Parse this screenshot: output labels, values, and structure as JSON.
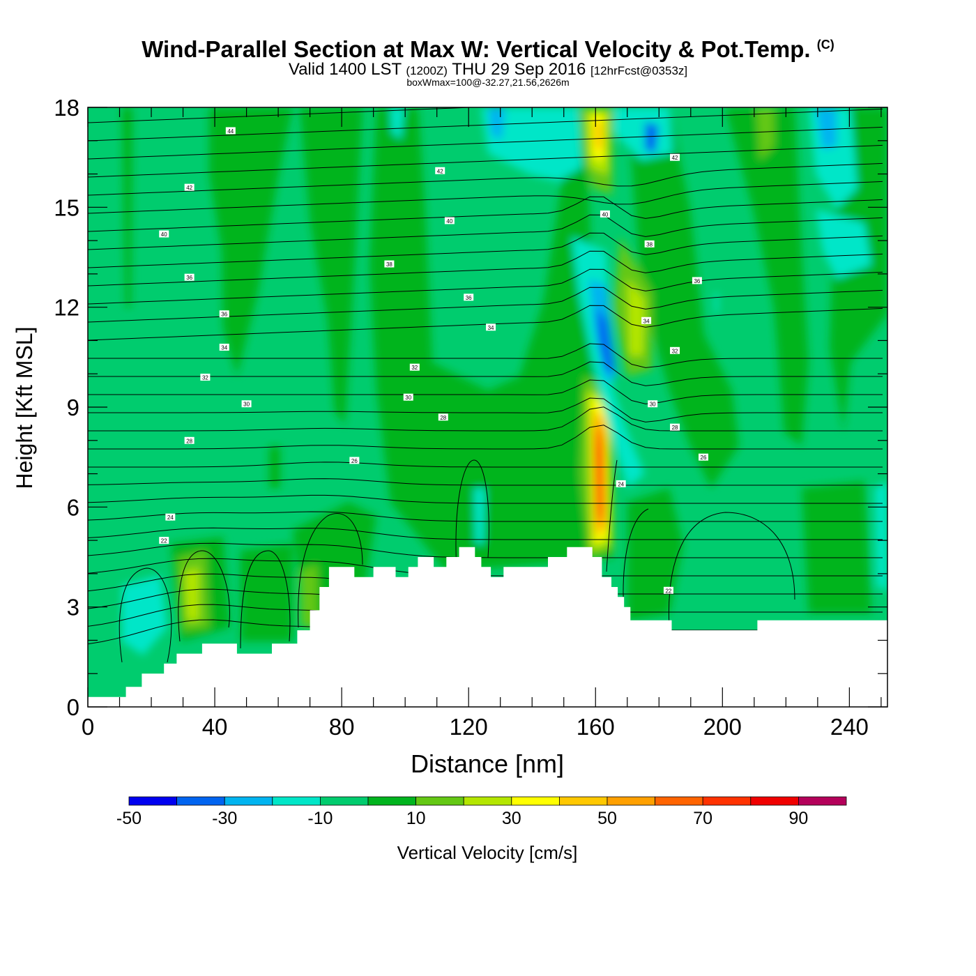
{
  "title": {
    "main": "Wind-Parallel Section at Max W: Vertical Velocity & Pot.Temp.",
    "copyright": "(C)",
    "valid_prefix": "Valid 1400 LST",
    "valid_z": "(1200Z)",
    "valid_date": "THU 29 Sep 2016",
    "forecast": "[12hrFcst@0353z]",
    "box_info": "boxWmax=100@-32.27,21.56,2626m"
  },
  "chart_data": {
    "type": "heatmap",
    "xlabel": "Distance [nm]",
    "ylabel": "Height [Kft MSL]",
    "xlim": [
      0,
      252
    ],
    "ylim": [
      0,
      18
    ],
    "x_ticks": [
      0,
      40,
      80,
      120,
      160,
      200,
      240
    ],
    "y_ticks": [
      0,
      3,
      6,
      9,
      12,
      15,
      18
    ],
    "colorbar": {
      "label": "Vertical Velocity [cm/s]",
      "tick_labels": [
        -50,
        -30,
        -10,
        10,
        30,
        50,
        70,
        90
      ],
      "bins": [
        -50,
        -40,
        -30,
        -20,
        -10,
        0,
        10,
        20,
        30,
        40,
        50,
        60,
        70,
        80,
        90,
        100
      ],
      "colors": [
        "#0000f0",
        "#0064f0",
        "#00b4f0",
        "#00e6c8",
        "#00cc6e",
        "#00b41e",
        "#64c814",
        "#b4e600",
        "#ffff00",
        "#ffc800",
        "#ffa000",
        "#ff6400",
        "#ff3200",
        "#f00000",
        "#b4005a"
      ]
    },
    "field_background": "#00cc6e",
    "terrain": [
      [
        0,
        0.3
      ],
      [
        12,
        0.3
      ],
      [
        12,
        0.6
      ],
      [
        17,
        0.6
      ],
      [
        17,
        1.0
      ],
      [
        24,
        1.0
      ],
      [
        24,
        1.3
      ],
      [
        28,
        1.3
      ],
      [
        28,
        1.6
      ],
      [
        36,
        1.6
      ],
      [
        36,
        1.9
      ],
      [
        47,
        1.9
      ],
      [
        47,
        1.6
      ],
      [
        58,
        1.6
      ],
      [
        58,
        1.9
      ],
      [
        66,
        1.9
      ],
      [
        66,
        2.3
      ],
      [
        70,
        2.3
      ],
      [
        70,
        2.9
      ],
      [
        73,
        2.9
      ],
      [
        73,
        3.6
      ],
      [
        76,
        3.6
      ],
      [
        76,
        4.2
      ],
      [
        84,
        4.2
      ],
      [
        84,
        3.9
      ],
      [
        90,
        3.9
      ],
      [
        90,
        4.2
      ],
      [
        97,
        4.2
      ],
      [
        97,
        3.9
      ],
      [
        101,
        3.9
      ],
      [
        101,
        4.2
      ],
      [
        104,
        4.2
      ],
      [
        104,
        4.5
      ],
      [
        109,
        4.5
      ],
      [
        109,
        4.2
      ],
      [
        113,
        4.2
      ],
      [
        113,
        4.5
      ],
      [
        117,
        4.5
      ],
      [
        117,
        4.8
      ],
      [
        122,
        4.8
      ],
      [
        122,
        4.5
      ],
      [
        124,
        4.5
      ],
      [
        124,
        4.2
      ],
      [
        127,
        4.2
      ],
      [
        127,
        3.9
      ],
      [
        131,
        3.9
      ],
      [
        131,
        4.2
      ],
      [
        140,
        4.2
      ],
      [
        140,
        4.2
      ],
      [
        145,
        4.2
      ],
      [
        145,
        4.5
      ],
      [
        151,
        4.5
      ],
      [
        151,
        4.8
      ],
      [
        159,
        4.8
      ],
      [
        159,
        4.5
      ],
      [
        162,
        4.5
      ],
      [
        162,
        3.9
      ],
      [
        165,
        3.9
      ],
      [
        165,
        3.6
      ],
      [
        167,
        3.6
      ],
      [
        167,
        3.3
      ],
      [
        169,
        3.3
      ],
      [
        169,
        3.0
      ],
      [
        171,
        3.0
      ],
      [
        171,
        2.6
      ],
      [
        184,
        2.6
      ],
      [
        184,
        2.3
      ],
      [
        211,
        2.3
      ],
      [
        211,
        2.6
      ],
      [
        252,
        2.6
      ]
    ],
    "contour_labels": [
      {
        "x": 45,
        "y": 17.3,
        "text": "44"
      },
      {
        "x": 111,
        "y": 16.1,
        "text": "42"
      },
      {
        "x": 185,
        "y": 16.5,
        "text": "42"
      },
      {
        "x": 32,
        "y": 15.6,
        "text": "42"
      },
      {
        "x": 114,
        "y": 14.6,
        "text": "40"
      },
      {
        "x": 163,
        "y": 14.8,
        "text": "40"
      },
      {
        "x": 24,
        "y": 14.2,
        "text": "40"
      },
      {
        "x": 177,
        "y": 13.9,
        "text": "38"
      },
      {
        "x": 95,
        "y": 13.3,
        "text": "38"
      },
      {
        "x": 32,
        "y": 12.9,
        "text": "36"
      },
      {
        "x": 192,
        "y": 12.8,
        "text": "36"
      },
      {
        "x": 120,
        "y": 12.3,
        "text": "36"
      },
      {
        "x": 43,
        "y": 11.8,
        "text": "36"
      },
      {
        "x": 176,
        "y": 11.6,
        "text": "34"
      },
      {
        "x": 127,
        "y": 11.4,
        "text": "34"
      },
      {
        "x": 43,
        "y": 10.8,
        "text": "34"
      },
      {
        "x": 185,
        "y": 10.7,
        "text": "32"
      },
      {
        "x": 103,
        "y": 10.2,
        "text": "32"
      },
      {
        "x": 37,
        "y": 9.9,
        "text": "32"
      },
      {
        "x": 101,
        "y": 9.3,
        "text": "30"
      },
      {
        "x": 178,
        "y": 9.1,
        "text": "30"
      },
      {
        "x": 50,
        "y": 9.1,
        "text": "30"
      },
      {
        "x": 112,
        "y": 8.7,
        "text": "28"
      },
      {
        "x": 185,
        "y": 8.4,
        "text": "28"
      },
      {
        "x": 32,
        "y": 8.0,
        "text": "28"
      },
      {
        "x": 84,
        "y": 7.4,
        "text": "26"
      },
      {
        "x": 194,
        "y": 7.5,
        "text": "26"
      },
      {
        "x": 168,
        "y": 6.7,
        "text": "24"
      },
      {
        "x": 26,
        "y": 5.7,
        "text": "24"
      },
      {
        "x": 24,
        "y": 5.0,
        "text": "22"
      },
      {
        "x": 183,
        "y": 3.5,
        "text": "22"
      }
    ]
  }
}
